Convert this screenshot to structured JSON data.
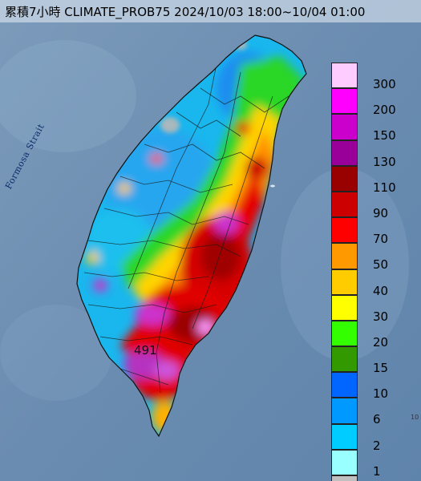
{
  "title": "累積7小時 CLIMATE_PROB75 2024/10/03 18:00~10/04 01:00",
  "strait_label": "Formosa Strait",
  "max_value_label": "491",
  "corner_text": "10",
  "legend": {
    "items": [
      {
        "label": "300",
        "color": "#ffccff"
      },
      {
        "label": "200",
        "color": "#ff00ff"
      },
      {
        "label": "150",
        "color": "#cc00cc"
      },
      {
        "label": "130",
        "color": "#990099"
      },
      {
        "label": "110",
        "color": "#990000"
      },
      {
        "label": "90",
        "color": "#cc0000"
      },
      {
        "label": "70",
        "color": "#ff0000"
      },
      {
        "label": "50",
        "color": "#ff9900"
      },
      {
        "label": "40",
        "color": "#ffcc00"
      },
      {
        "label": "30",
        "color": "#ffff00"
      },
      {
        "label": "20",
        "color": "#33ff00"
      },
      {
        "label": "15",
        "color": "#339900"
      },
      {
        "label": "10",
        "color": "#0066ff"
      },
      {
        "label": "6",
        "color": "#0099ff"
      },
      {
        "label": "2",
        "color": "#00ccff"
      },
      {
        "label": "1",
        "color": "#99ffff"
      },
      {
        "label": "",
        "color": "#c0c0c0"
      }
    ]
  }
}
